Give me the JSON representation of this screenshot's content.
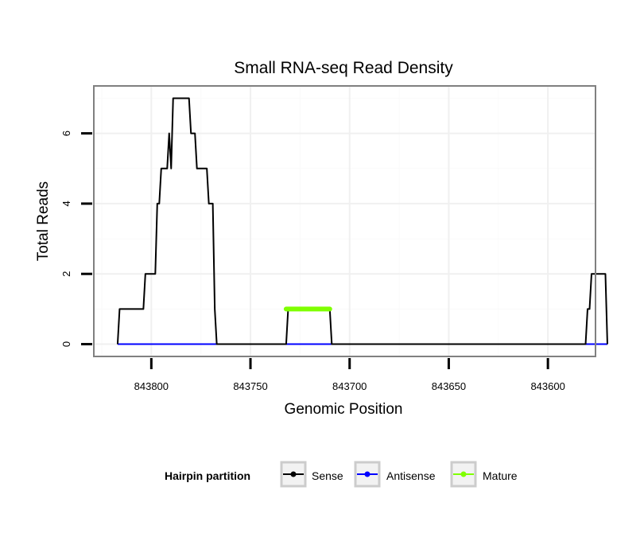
{
  "chart_data": {
    "type": "line",
    "title": "Small RNA-seq Read Density",
    "xlabel": "Genomic Position",
    "ylabel": "Total Reads",
    "x_reversed": true,
    "xlim": [
      843829,
      843576
    ],
    "ylim": [
      -0.35,
      7.35
    ],
    "x_ticks": [
      843800,
      843750,
      843700,
      843650,
      843600
    ],
    "x_tick_labels": [
      "843800",
      "843750",
      "843700",
      "843650",
      "843600"
    ],
    "y_ticks": [
      0,
      2,
      4,
      6
    ],
    "y_tick_labels": [
      "0",
      "2",
      "4",
      "6"
    ],
    "grid": true,
    "legend": {
      "title": "Hairpin partition",
      "position": "bottom",
      "entries": [
        {
          "label": "Sense",
          "color": "#000000"
        },
        {
          "label": "Antisense",
          "color": "#0000ff"
        },
        {
          "label": "Mature",
          "color": "#7fff00"
        }
      ]
    },
    "series": [
      {
        "name": "Antisense",
        "color": "#0000ff",
        "points": [
          [
            843817,
            0
          ],
          [
            843570,
            0
          ]
        ]
      },
      {
        "name": "Sense",
        "color": "#000000",
        "points": [
          [
            843817,
            0
          ],
          [
            843816,
            1
          ],
          [
            843813.5,
            1
          ],
          [
            843804,
            1
          ],
          [
            843803,
            2
          ],
          [
            843798,
            2
          ],
          [
            843797,
            4
          ],
          [
            843796,
            4
          ],
          [
            843795,
            5
          ],
          [
            843792,
            5
          ],
          [
            843791,
            6
          ],
          [
            843790,
            5
          ],
          [
            843789,
            7
          ],
          [
            843781,
            7
          ],
          [
            843780,
            6
          ],
          [
            843778,
            6
          ],
          [
            843777,
            5
          ],
          [
            843772,
            5
          ],
          [
            843771,
            4
          ],
          [
            843769,
            4
          ],
          [
            843768,
            1
          ],
          [
            843767,
            0
          ],
          [
            843732,
            0
          ],
          [
            843731,
            1
          ],
          [
            843710,
            1
          ],
          [
            843709,
            0
          ],
          [
            843581,
            0
          ],
          [
            843580,
            1
          ],
          [
            843579,
            1
          ],
          [
            843578,
            2
          ],
          [
            843571,
            2
          ],
          [
            843570,
            0
          ]
        ]
      },
      {
        "name": "Mature",
        "color": "#7fff00",
        "points": [
          [
            843732,
            1
          ],
          [
            843710,
            1
          ]
        ]
      }
    ]
  }
}
